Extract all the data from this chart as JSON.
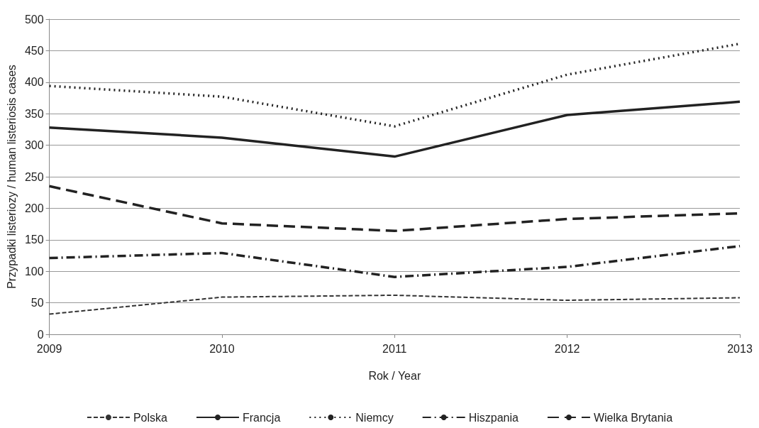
{
  "chart_data": {
    "type": "line",
    "xlabel": "Rok / Year",
    "ylabel": "Przypadki listeriozy / human listeriosis cases",
    "categories": [
      "2009",
      "2010",
      "2011",
      "2012",
      "2013"
    ],
    "ylim": [
      0,
      500
    ],
    "yticks": [
      0,
      50,
      100,
      150,
      200,
      250,
      300,
      350,
      400,
      450,
      500
    ],
    "grid": "y",
    "legend": "bottom",
    "marker": "none",
    "series": [
      {
        "name": "Polska",
        "color": "#333333",
        "line_style": "dashed",
        "values": [
          32,
          59,
          62,
          54,
          58
        ]
      },
      {
        "name": "Francja",
        "color": "#222222",
        "line_style": "solid",
        "values": [
          328,
          312,
          282,
          348,
          369
        ]
      },
      {
        "name": "Niemcy",
        "color": "#222222",
        "line_style": "dotted",
        "values": [
          394,
          377,
          330,
          412,
          461
        ]
      },
      {
        "name": "Hiszpania",
        "color": "#222222",
        "line_style": "dashdot",
        "values": [
          121,
          129,
          91,
          107,
          140
        ]
      },
      {
        "name": "Wielka Brytania",
        "color": "#222222",
        "line_style": "longdash",
        "values": [
          235,
          176,
          164,
          183,
          192
        ]
      }
    ]
  }
}
